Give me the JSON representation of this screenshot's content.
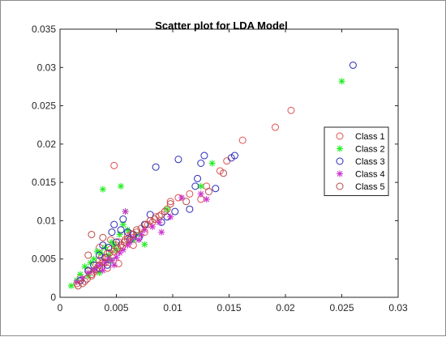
{
  "chart_data": {
    "type": "scatter",
    "title": "Scatter plot for LDA Model",
    "xlabel": "",
    "ylabel": "",
    "xlim": [
      0,
      0.03
    ],
    "ylim": [
      0,
      0.035
    ],
    "x_ticks": [
      "0",
      "0.005",
      "0.01",
      "0.015",
      "0.02",
      "0.025",
      "0.03"
    ],
    "y_ticks": [
      "0",
      "0.005",
      "0.01",
      "0.015",
      "0.02",
      "0.025",
      "0.03",
      "0.035"
    ],
    "grid": false,
    "legend_position": "right",
    "series": [
      {
        "name": "Class 1",
        "marker": "circle",
        "color": "#e05050",
        "points": [
          [
            0.0015,
            0.0018
          ],
          [
            0.0018,
            0.0025
          ],
          [
            0.0022,
            0.0021
          ],
          [
            0.0025,
            0.0034
          ],
          [
            0.0028,
            0.0028
          ],
          [
            0.003,
            0.0033
          ],
          [
            0.0032,
            0.0042
          ],
          [
            0.0035,
            0.0048
          ],
          [
            0.0037,
            0.0052
          ],
          [
            0.004,
            0.0045
          ],
          [
            0.0042,
            0.0057
          ],
          [
            0.0045,
            0.0063
          ],
          [
            0.0047,
            0.0055
          ],
          [
            0.005,
            0.0068
          ],
          [
            0.0052,
            0.0072
          ],
          [
            0.0055,
            0.0065
          ],
          [
            0.0058,
            0.0075
          ],
          [
            0.006,
            0.008
          ],
          [
            0.0063,
            0.0083
          ],
          [
            0.0065,
            0.0078
          ],
          [
            0.0068,
            0.0085
          ],
          [
            0.007,
            0.0078
          ],
          [
            0.0075,
            0.0085
          ],
          [
            0.0078,
            0.0095
          ],
          [
            0.0082,
            0.0098
          ],
          [
            0.0085,
            0.0105
          ],
          [
            0.009,
            0.0108
          ],
          [
            0.0095,
            0.0115
          ],
          [
            0.0098,
            0.0125
          ],
          [
            0.0105,
            0.013
          ],
          [
            0.0115,
            0.0135
          ],
          [
            0.0125,
            0.0128
          ],
          [
            0.013,
            0.0145
          ],
          [
            0.0142,
            0.0165
          ],
          [
            0.0148,
            0.0178
          ],
          [
            0.0162,
            0.0205
          ],
          [
            0.0191,
            0.0222
          ],
          [
            0.0205,
            0.0244
          ],
          [
            0.0048,
            0.0172
          ],
          [
            0.0033,
            0.0038
          ],
          [
            0.0042,
            0.0038
          ],
          [
            0.0052,
            0.0044
          ],
          [
            0.0065,
            0.0068
          ],
          [
            0.0045,
            0.0075
          ],
          [
            0.0035,
            0.0065
          ]
        ]
      },
      {
        "name": "Class 2",
        "marker": "star",
        "color": "#22ee22",
        "points": [
          [
            0.001,
            0.0015
          ],
          [
            0.0015,
            0.0022
          ],
          [
            0.0018,
            0.003
          ],
          [
            0.0022,
            0.004
          ],
          [
            0.0025,
            0.0028
          ],
          [
            0.0027,
            0.0045
          ],
          [
            0.003,
            0.005
          ],
          [
            0.0033,
            0.006
          ],
          [
            0.0036,
            0.0058
          ],
          [
            0.004,
            0.0065
          ],
          [
            0.0043,
            0.0055
          ],
          [
            0.0046,
            0.0072
          ],
          [
            0.0048,
            0.0068
          ],
          [
            0.005,
            0.0062
          ],
          [
            0.0053,
            0.0082
          ],
          [
            0.0056,
            0.0095
          ],
          [
            0.0058,
            0.0112
          ],
          [
            0.006,
            0.0088
          ],
          [
            0.0038,
            0.0141
          ],
          [
            0.0054,
            0.0145
          ],
          [
            0.0095,
            0.0115
          ],
          [
            0.0125,
            0.0145
          ],
          [
            0.0135,
            0.0175
          ],
          [
            0.025,
            0.0282
          ],
          [
            0.0065,
            0.0075
          ],
          [
            0.007,
            0.0082
          ],
          [
            0.0075,
            0.0069
          ],
          [
            0.0045,
            0.0048
          ],
          [
            0.0035,
            0.0032
          ]
        ]
      },
      {
        "name": "Class 3",
        "marker": "circle",
        "color": "#2a2ab8",
        "points": [
          [
            0.0018,
            0.0022
          ],
          [
            0.0025,
            0.0035
          ],
          [
            0.003,
            0.0042
          ],
          [
            0.0035,
            0.0055
          ],
          [
            0.0038,
            0.0068
          ],
          [
            0.004,
            0.0052
          ],
          [
            0.0043,
            0.0065
          ],
          [
            0.0046,
            0.0085
          ],
          [
            0.0048,
            0.0095
          ],
          [
            0.005,
            0.0072
          ],
          [
            0.0054,
            0.0088
          ],
          [
            0.0056,
            0.0102
          ],
          [
            0.006,
            0.0085
          ],
          [
            0.0062,
            0.0075
          ],
          [
            0.0065,
            0.0082
          ],
          [
            0.007,
            0.0078
          ],
          [
            0.0075,
            0.0095
          ],
          [
            0.008,
            0.0108
          ],
          [
            0.0085,
            0.017
          ],
          [
            0.009,
            0.0098
          ],
          [
            0.0095,
            0.0105
          ],
          [
            0.0102,
            0.0112
          ],
          [
            0.0105,
            0.018
          ],
          [
            0.0115,
            0.0115
          ],
          [
            0.012,
            0.0145
          ],
          [
            0.0122,
            0.0155
          ],
          [
            0.0125,
            0.0175
          ],
          [
            0.0128,
            0.0185
          ],
          [
            0.0138,
            0.0142
          ],
          [
            0.0152,
            0.0182
          ],
          [
            0.0155,
            0.0185
          ],
          [
            0.026,
            0.0303
          ],
          [
            0.0035,
            0.0038
          ],
          [
            0.0042,
            0.0042
          ]
        ]
      },
      {
        "name": "Class 4",
        "marker": "star",
        "color": "#cc33cc",
        "points": [
          [
            0.0015,
            0.002
          ],
          [
            0.002,
            0.0025
          ],
          [
            0.0025,
            0.0032
          ],
          [
            0.003,
            0.0035
          ],
          [
            0.0033,
            0.004
          ],
          [
            0.0036,
            0.0042
          ],
          [
            0.004,
            0.0045
          ],
          [
            0.0043,
            0.005
          ],
          [
            0.0046,
            0.0048
          ],
          [
            0.005,
            0.0052
          ],
          [
            0.0053,
            0.0058
          ],
          [
            0.0056,
            0.0062
          ],
          [
            0.006,
            0.0068
          ],
          [
            0.0062,
            0.0072
          ],
          [
            0.0065,
            0.0078
          ],
          [
            0.007,
            0.0075
          ],
          [
            0.0072,
            0.0082
          ],
          [
            0.0075,
            0.0088
          ],
          [
            0.0082,
            0.0092
          ],
          [
            0.0088,
            0.0098
          ],
          [
            0.009,
            0.0085
          ],
          [
            0.0098,
            0.0105
          ],
          [
            0.0108,
            0.013
          ],
          [
            0.0125,
            0.0135
          ],
          [
            0.013,
            0.0128
          ],
          [
            0.0058,
            0.0112
          ],
          [
            0.0038,
            0.0035
          ],
          [
            0.0048,
            0.0042
          ]
        ]
      },
      {
        "name": "Class 5",
        "marker": "circle",
        "color": "#b84a4a",
        "points": [
          [
            0.0016,
            0.0015
          ],
          [
            0.002,
            0.0018
          ],
          [
            0.0024,
            0.0024
          ],
          [
            0.0028,
            0.003
          ],
          [
            0.0032,
            0.0036
          ],
          [
            0.0035,
            0.0042
          ],
          [
            0.0038,
            0.0046
          ],
          [
            0.0041,
            0.0052
          ],
          [
            0.0044,
            0.0058
          ],
          [
            0.0048,
            0.006
          ],
          [
            0.0051,
            0.0064
          ],
          [
            0.0054,
            0.0068
          ],
          [
            0.0057,
            0.0072
          ],
          [
            0.006,
            0.0076
          ],
          [
            0.0064,
            0.0082
          ],
          [
            0.0068,
            0.0088
          ],
          [
            0.0072,
            0.009
          ],
          [
            0.0076,
            0.0095
          ],
          [
            0.008,
            0.01
          ],
          [
            0.0084,
            0.0102
          ],
          [
            0.0088,
            0.0106
          ],
          [
            0.0093,
            0.0112
          ],
          [
            0.0098,
            0.0122
          ],
          [
            0.0112,
            0.0125
          ],
          [
            0.0132,
            0.0138
          ],
          [
            0.0145,
            0.0162
          ],
          [
            0.0028,
            0.0082
          ],
          [
            0.0038,
            0.0078
          ],
          [
            0.0025,
            0.0055
          ]
        ]
      }
    ]
  }
}
